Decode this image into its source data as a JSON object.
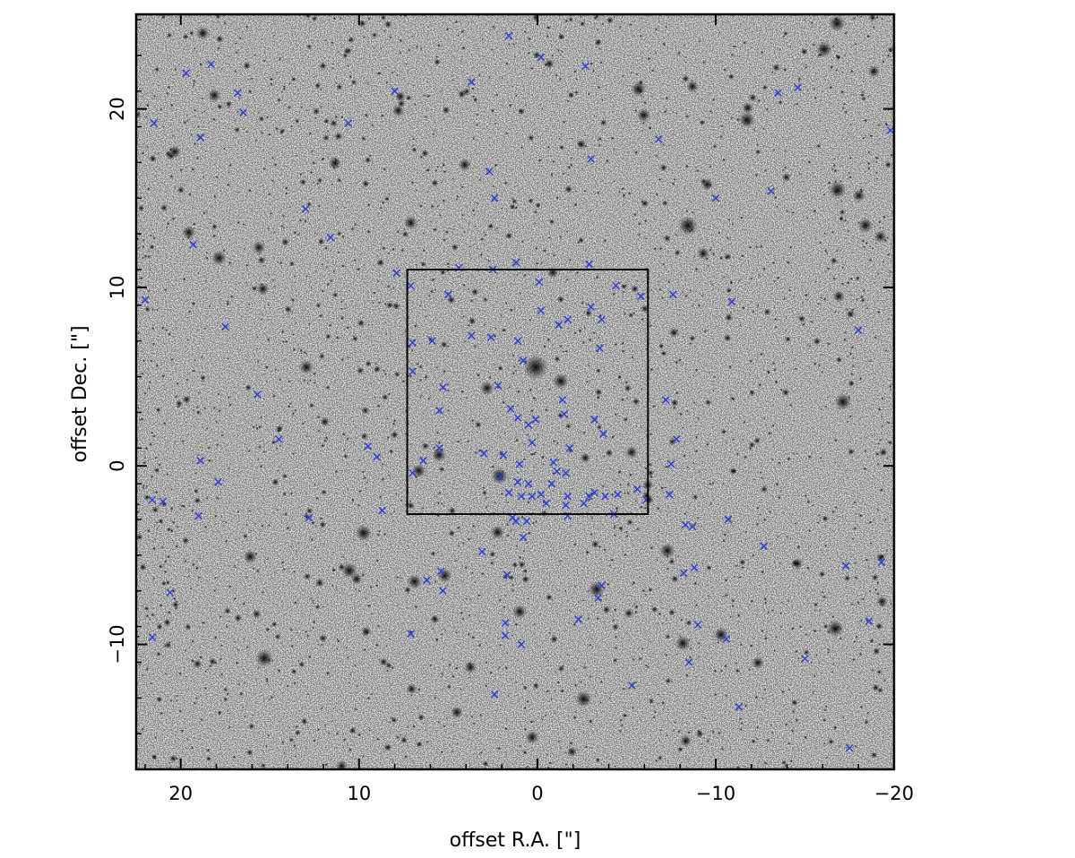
{
  "chart_data": {
    "type": "scatter",
    "title": "",
    "xlabel": "offset R.A. [\"]",
    "ylabel": "offset Dec. [\"]",
    "xlim": [
      22.5,
      -20.0
    ],
    "ylim": [
      -17.0,
      25.3
    ],
    "x_ticks": [
      20,
      10,
      0,
      -10,
      -20
    ],
    "y_ticks": [
      -10,
      0,
      10,
      20
    ],
    "x_tick_labels": [
      "20",
      "10",
      "0",
      "−10",
      "−20"
    ],
    "y_tick_labels": [
      "−10",
      "0",
      "10",
      "20"
    ],
    "grid": false,
    "background": "inverted greyscale star-field image",
    "box": {
      "x_range": [
        7.3,
        -6.2
      ],
      "y_range": [
        -2.7,
        11.0
      ]
    },
    "marker": {
      "symbol": "x",
      "color": "#2f3fd0"
    },
    "series": [
      {
        "values": [
          [
            19.7,
            22.0
          ],
          [
            18.3,
            22.5
          ],
          [
            8.0,
            21.0
          ],
          [
            3.7,
            21.5
          ],
          [
            1.6,
            24.1
          ],
          [
            -0.2,
            22.9
          ],
          [
            -2.7,
            22.4
          ],
          [
            16.8,
            20.9
          ],
          [
            16.5,
            19.8
          ],
          [
            21.5,
            19.2
          ],
          [
            10.6,
            19.2
          ],
          [
            18.9,
            18.4
          ],
          [
            -6.8,
            18.3
          ],
          [
            -3.0,
            17.2
          ],
          [
            -19.8,
            18.8
          ],
          [
            -13.5,
            20.9
          ],
          [
            -14.6,
            21.2
          ],
          [
            2.7,
            16.5
          ],
          [
            2.4,
            15.0
          ],
          [
            -10.0,
            15.0
          ],
          [
            -13.1,
            15.4
          ],
          [
            13.0,
            14.4
          ],
          [
            11.6,
            12.8
          ],
          [
            19.3,
            12.4
          ],
          [
            1.2,
            11.4
          ],
          [
            -2.9,
            11.3
          ],
          [
            4.4,
            11.1
          ],
          [
            2.5,
            11.0
          ],
          [
            7.9,
            10.8
          ],
          [
            7.1,
            10.1
          ],
          [
            5.0,
            9.6
          ],
          [
            -0.1,
            10.3
          ],
          [
            -4.4,
            10.1
          ],
          [
            -5.8,
            9.5
          ],
          [
            -7.6,
            9.6
          ],
          [
            -10.9,
            9.2
          ],
          [
            22.0,
            9.3
          ],
          [
            -0.2,
            8.7
          ],
          [
            -3.0,
            8.9
          ],
          [
            -1.7,
            8.2
          ],
          [
            -1.2,
            7.9
          ],
          [
            -3.6,
            8.2
          ],
          [
            17.5,
            7.8
          ],
          [
            -18.0,
            7.6
          ],
          [
            7.0,
            6.9
          ],
          [
            5.9,
            7.0
          ],
          [
            3.7,
            7.3
          ],
          [
            2.6,
            7.2
          ],
          [
            1.1,
            7.0
          ],
          [
            -3.5,
            6.6
          ],
          [
            0.8,
            5.9
          ],
          [
            7.0,
            5.3
          ],
          [
            15.7,
            4.0
          ],
          [
            5.3,
            4.4
          ],
          [
            2.2,
            4.5
          ],
          [
            -1.4,
            3.7
          ],
          [
            -7.2,
            3.7
          ],
          [
            5.5,
            3.1
          ],
          [
            1.5,
            3.2
          ],
          [
            1.1,
            2.7
          ],
          [
            0.5,
            2.3
          ],
          [
            0.1,
            2.6
          ],
          [
            -1.5,
            2.9
          ],
          [
            -3.2,
            2.6
          ],
          [
            -3.7,
            1.8
          ],
          [
            14.5,
            1.5
          ],
          [
            9.5,
            1.1
          ],
          [
            -7.8,
            1.5
          ],
          [
            5.5,
            1.0
          ],
          [
            0.3,
            1.3
          ],
          [
            -1.8,
            1.0
          ],
          [
            9.0,
            0.5
          ],
          [
            6.4,
            0.3
          ],
          [
            3.0,
            0.7
          ],
          [
            1.9,
            0.6
          ],
          [
            18.9,
            0.3
          ],
          [
            -7.5,
            0.1
          ],
          [
            1.0,
            0.1
          ],
          [
            -0.9,
            0.2
          ],
          [
            7.0,
            -0.4
          ],
          [
            -1.1,
            -0.3
          ],
          [
            -1.6,
            -0.4
          ],
          [
            2.1,
            -0.6
          ],
          [
            1.1,
            -0.9
          ],
          [
            0.5,
            -1.0
          ],
          [
            -0.8,
            -1.0
          ],
          [
            17.9,
            -0.9
          ],
          [
            21.6,
            -1.9
          ],
          [
            21.0,
            -2.0
          ],
          [
            -5.6,
            -1.3
          ],
          [
            -7.4,
            -1.6
          ],
          [
            1.6,
            -1.5
          ],
          [
            0.9,
            -1.7
          ],
          [
            0.3,
            -1.7
          ],
          [
            -0.2,
            -1.6
          ],
          [
            -1.7,
            -1.7
          ],
          [
            -2.9,
            -1.7
          ],
          [
            -3.2,
            -1.5
          ],
          [
            -3.8,
            -1.7
          ],
          [
            -4.5,
            -1.6
          ],
          [
            -6.1,
            -1.9
          ],
          [
            -0.5,
            -2.1
          ],
          [
            -1.6,
            -2.2
          ],
          [
            -2.6,
            -2.1
          ],
          [
            8.7,
            -2.5
          ],
          [
            19.0,
            -2.8
          ],
          [
            12.8,
            -2.9
          ],
          [
            1.4,
            -2.9
          ],
          [
            1.2,
            -3.1
          ],
          [
            -1.7,
            -2.8
          ],
          [
            -4.3,
            -2.7
          ],
          [
            0.6,
            -3.1
          ],
          [
            -8.3,
            -3.3
          ],
          [
            -8.7,
            -3.4
          ],
          [
            -10.7,
            -3.0
          ],
          [
            0.8,
            -4.0
          ],
          [
            -12.7,
            -4.5
          ],
          [
            3.1,
            -4.8
          ],
          [
            -17.3,
            -5.6
          ],
          [
            -19.3,
            -5.4
          ],
          [
            -8.8,
            -5.7
          ],
          [
            -8.2,
            -6.0
          ],
          [
            5.4,
            -5.9
          ],
          [
            6.2,
            -6.4
          ],
          [
            1.7,
            -6.1
          ],
          [
            -3.6,
            -6.7
          ],
          [
            5.3,
            -7.0
          ],
          [
            20.6,
            -7.1
          ],
          [
            -3.4,
            -7.4
          ],
          [
            1.8,
            -8.8
          ],
          [
            -2.3,
            -8.6
          ],
          [
            -9.0,
            -8.9
          ],
          [
            -18.6,
            -8.7
          ],
          [
            7.1,
            -9.4
          ],
          [
            1.8,
            -9.5
          ],
          [
            0.9,
            -10.0
          ],
          [
            -10.6,
            -9.7
          ],
          [
            21.6,
            -9.6
          ],
          [
            -15.0,
            -10.8
          ],
          [
            -8.5,
            -11.0
          ],
          [
            -5.3,
            -12.3
          ],
          [
            2.4,
            -12.8
          ],
          [
            -11.3,
            -13.5
          ],
          [
            -17.5,
            -15.8
          ]
        ]
      }
    ]
  }
}
